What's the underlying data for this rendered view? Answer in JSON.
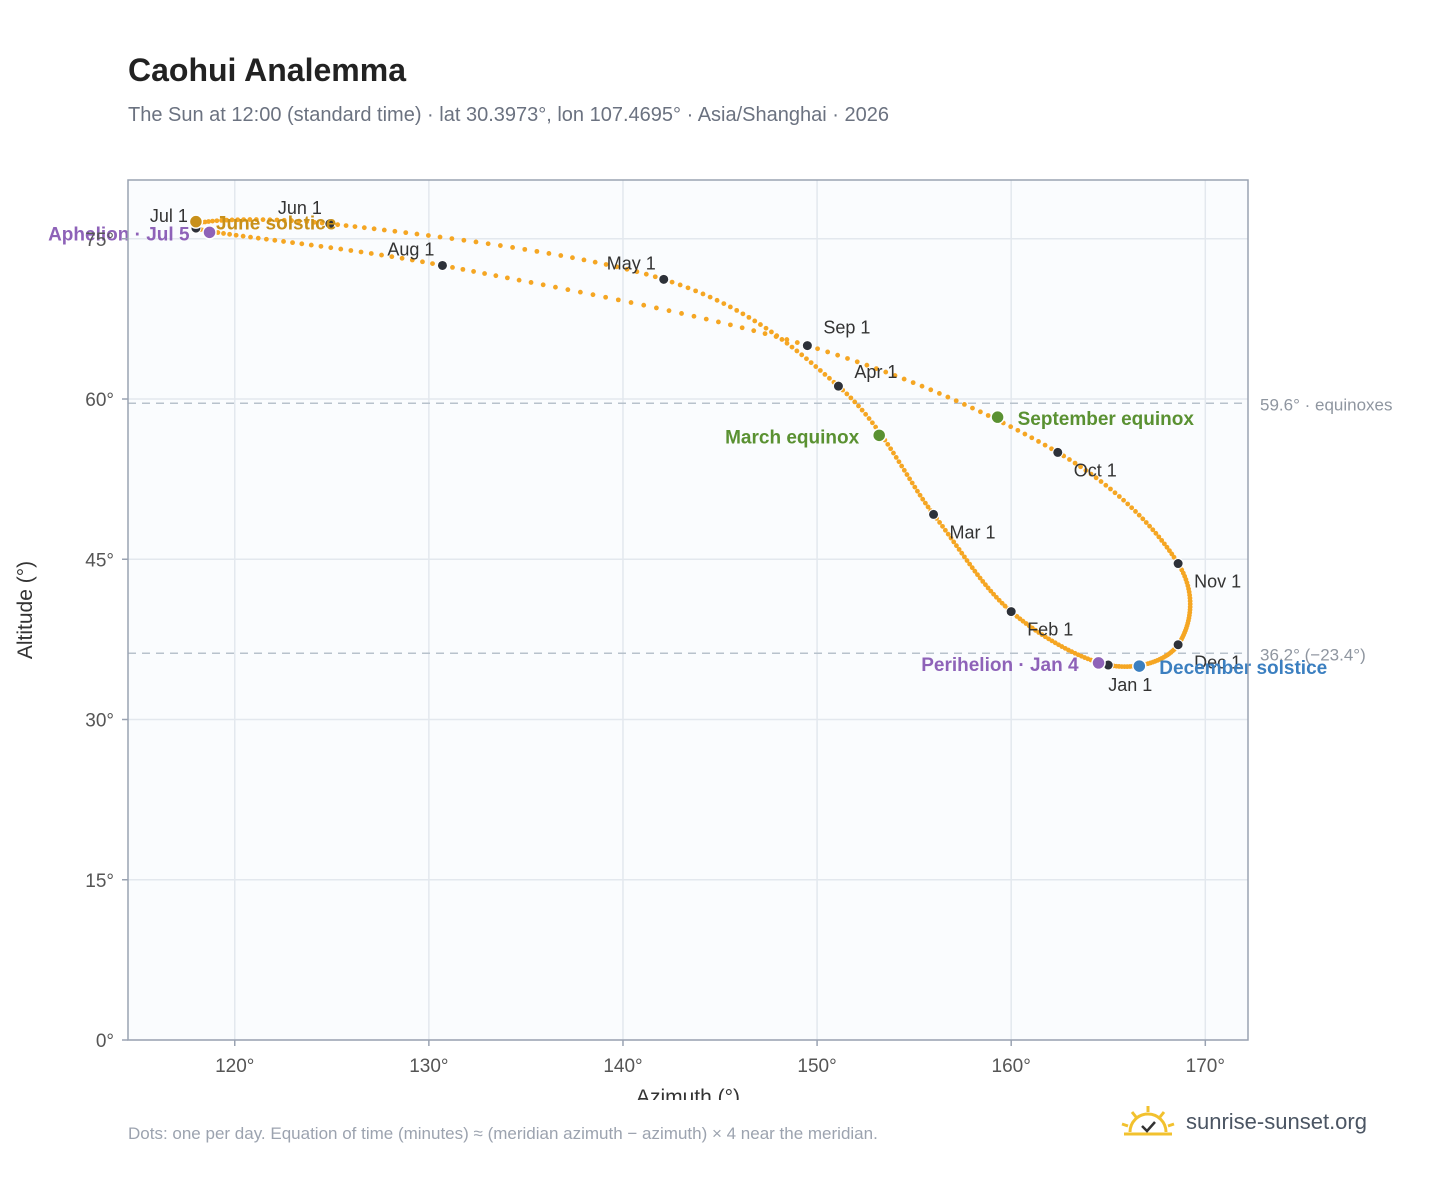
{
  "title": "Caohui Analemma",
  "subtitle": "The Sun at 12:00 (standard time) · lat 30.3973°, lon 107.4695° · Asia/Shanghai · 2026",
  "footnote": "Dots: one per day. Equation of time (minutes) ≈ (meridian azimuth − azimuth) × 4 near the meridian.",
  "brand": {
    "text": "sunrise-sunset.org",
    "icon": "sun-check-icon"
  },
  "chart_data": {
    "type": "scatter",
    "xlabel": "Azimuth (°)",
    "ylabel": "Altitude (°)",
    "xlim": [
      114.5,
      172.2
    ],
    "ylim": [
      0,
      80.5
    ],
    "x_ticks": [
      120,
      130,
      140,
      150,
      160,
      170
    ],
    "x_tick_labels": [
      "120°",
      "130°",
      "140°",
      "150°",
      "160°",
      "170°"
    ],
    "y_ticks": [
      0,
      15,
      30,
      45,
      60,
      75
    ],
    "y_tick_labels": [
      "0°",
      "15°",
      "30°",
      "45°",
      "60°",
      "75°"
    ],
    "grid": true,
    "months": [
      {
        "label": "Jan 1",
        "x": 165.0,
        "y": 35.1
      },
      {
        "label": "Feb 1",
        "x": 160.0,
        "y": 40.1
      },
      {
        "label": "Mar 1",
        "x": 156.0,
        "y": 49.2
      },
      {
        "label": "Apr 1",
        "x": 151.1,
        "y": 61.2
      },
      {
        "label": "May 1",
        "x": 142.1,
        "y": 71.2
      },
      {
        "label": "Jun 1",
        "x": 124.9,
        "y": 76.4
      },
      {
        "label": "Jul 1",
        "x": 118.0,
        "y": 76.0
      },
      {
        "label": "Aug 1",
        "x": 130.7,
        "y": 72.5
      },
      {
        "label": "Sep 1",
        "x": 149.5,
        "y": 65.0
      },
      {
        "label": "Oct 1",
        "x": 162.4,
        "y": 55.0
      },
      {
        "label": "Nov 1",
        "x": 168.6,
        "y": 44.6
      },
      {
        "label": "Dec 1",
        "x": 168.6,
        "y": 37.0
      }
    ],
    "events": [
      {
        "label": "June solstice",
        "x": 118.0,
        "y": 76.6,
        "color": "#c8901a"
      },
      {
        "label": "Aphelion · Jul 5",
        "x": 118.7,
        "y": 75.6,
        "color": "#8e62b8"
      },
      {
        "label": "March equinox",
        "x": 153.2,
        "y": 56.6,
        "color": "#5a9132"
      },
      {
        "label": "September equinox",
        "x": 159.3,
        "y": 58.3,
        "color": "#5a9132"
      },
      {
        "label": "Perihelion · Jan 4",
        "x": 164.5,
        "y": 35.3,
        "color": "#8e62b8"
      },
      {
        "label": "December solstice",
        "x": 166.6,
        "y": 35.0,
        "color": "#3b7fc0"
      }
    ],
    "reference_lines": [
      {
        "y": 59.6,
        "label": "59.6° · equinoxes"
      },
      {
        "y": 36.2,
        "label": "36.2° (−23.4°)"
      }
    ],
    "curve_color": "#f5a623",
    "month_marker_color": "#2d3139"
  }
}
